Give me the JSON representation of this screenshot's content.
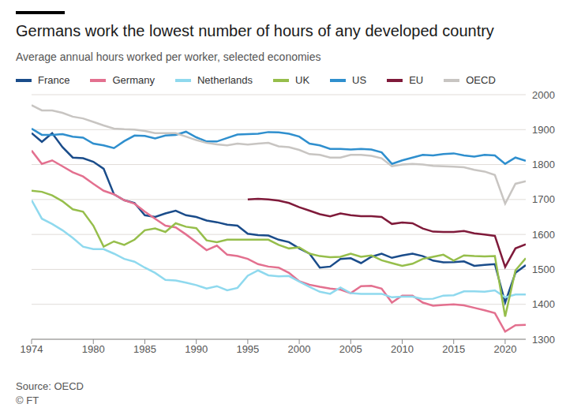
{
  "chart_data": {
    "type": "line",
    "title": "Germans work the lowest number of hours of any developed country",
    "subtitle": "Average annual hours worked per worker, selected economies",
    "source": "Source: OECD",
    "credit": "© FT",
    "x": [
      1974,
      1975,
      1976,
      1977,
      1978,
      1979,
      1980,
      1981,
      1982,
      1983,
      1984,
      1985,
      1986,
      1987,
      1988,
      1989,
      1990,
      1991,
      1992,
      1993,
      1994,
      1995,
      1996,
      1997,
      1998,
      1999,
      2000,
      2001,
      2002,
      2003,
      2004,
      2005,
      2006,
      2007,
      2008,
      2009,
      2010,
      2011,
      2012,
      2013,
      2014,
      2015,
      2016,
      2017,
      2018,
      2019,
      2020,
      2021,
      2022
    ],
    "xlim": [
      1974,
      2022
    ],
    "xticks": [
      1974,
      1980,
      1985,
      1990,
      1995,
      2000,
      2005,
      2010,
      2015,
      2020
    ],
    "ylim": [
      1300,
      2000
    ],
    "yticks": [
      1300,
      1400,
      1500,
      1600,
      1700,
      1800,
      1900,
      2000
    ],
    "grid": true,
    "series": [
      {
        "name": "France",
        "color": "#1a4c8a",
        "values": [
          1890,
          1865,
          1890,
          1850,
          1820,
          1818,
          1808,
          1788,
          1715,
          1698,
          1690,
          1655,
          1650,
          1660,
          1668,
          1655,
          1650,
          1640,
          1635,
          1628,
          1625,
          1602,
          1598,
          1597,
          1585,
          1578,
          1560,
          1545,
          1505,
          1508,
          1530,
          1532,
          1518,
          1536,
          1545,
          1533,
          1540,
          1545,
          1538,
          1525,
          1520,
          1521,
          1523,
          1510,
          1513,
          1515,
          1405,
          1490,
          1512
        ]
      },
      {
        "name": "Germany",
        "color": "#e3708f",
        "values": [
          1840,
          1802,
          1812,
          1795,
          1778,
          1766,
          1745,
          1725,
          1715,
          1698,
          1688,
          1665,
          1645,
          1625,
          1620,
          1600,
          1578,
          1555,
          1568,
          1542,
          1538,
          1530,
          1515,
          1508,
          1505,
          1490,
          1466,
          1456,
          1450,
          1445,
          1442,
          1432,
          1452,
          1453,
          1445,
          1405,
          1425,
          1425,
          1405,
          1396,
          1398,
          1400,
          1397,
          1390,
          1383,
          1375,
          1322,
          1340,
          1341
        ]
      },
      {
        "name": "Netherlands",
        "color": "#8fd9ee",
        "values": [
          1698,
          1645,
          1630,
          1612,
          1590,
          1565,
          1558,
          1558,
          1545,
          1530,
          1522,
          1505,
          1490,
          1470,
          1468,
          1462,
          1455,
          1445,
          1452,
          1440,
          1447,
          1482,
          1497,
          1483,
          1480,
          1481,
          1465,
          1450,
          1436,
          1430,
          1448,
          1432,
          1430,
          1430,
          1430,
          1420,
          1422,
          1422,
          1415,
          1416,
          1425,
          1426,
          1437,
          1437,
          1436,
          1440,
          1420,
          1428,
          1428
        ]
      },
      {
        "name": "UK",
        "color": "#96be4b",
        "values": [
          1725,
          1722,
          1712,
          1695,
          1672,
          1665,
          1625,
          1565,
          1580,
          1570,
          1585,
          1612,
          1617,
          1607,
          1632,
          1622,
          1618,
          1583,
          1578,
          1585,
          1585,
          1585,
          1585,
          1585,
          1570,
          1560,
          1563,
          1545,
          1538,
          1535,
          1536,
          1545,
          1536,
          1540,
          1526,
          1518,
          1510,
          1516,
          1530,
          1536,
          1542,
          1525,
          1540,
          1538,
          1537,
          1538,
          1365,
          1497,
          1532
        ]
      },
      {
        "name": "US",
        "color": "#2f8fce",
        "values": [
          1903,
          1885,
          1885,
          1887,
          1880,
          1877,
          1860,
          1855,
          1847,
          1867,
          1883,
          1882,
          1875,
          1883,
          1885,
          1894,
          1878,
          1866,
          1866,
          1876,
          1886,
          1887,
          1888,
          1893,
          1892,
          1888,
          1880,
          1860,
          1855,
          1845,
          1845,
          1843,
          1845,
          1843,
          1835,
          1802,
          1812,
          1820,
          1828,
          1826,
          1830,
          1832,
          1826,
          1823,
          1828,
          1826,
          1802,
          1820,
          1811
        ]
      },
      {
        "name": "EU",
        "color": "#7f1a3a",
        "values": [
          null,
          null,
          null,
          null,
          null,
          null,
          null,
          null,
          null,
          null,
          null,
          null,
          null,
          null,
          null,
          null,
          null,
          null,
          null,
          null,
          null,
          1700,
          1702,
          1700,
          1697,
          1690,
          1678,
          1668,
          1658,
          1652,
          1660,
          1655,
          1652,
          1652,
          1650,
          1630,
          1634,
          1632,
          1617,
          1608,
          1607,
          1607,
          1610,
          1603,
          1600,
          1596,
          1507,
          1560,
          1572
        ]
      },
      {
        "name": "OECD",
        "color": "#c8c5c2",
        "values": [
          1970,
          1955,
          1955,
          1948,
          1937,
          1932,
          1922,
          1912,
          1903,
          1901,
          1900,
          1896,
          1890,
          1890,
          1890,
          1880,
          1870,
          1862,
          1858,
          1855,
          1860,
          1857,
          1860,
          1862,
          1852,
          1850,
          1842,
          1830,
          1828,
          1820,
          1820,
          1828,
          1828,
          1825,
          1818,
          1795,
          1800,
          1802,
          1800,
          1796,
          1795,
          1794,
          1792,
          1785,
          1780,
          1770,
          1688,
          1745,
          1752
        ]
      }
    ]
  }
}
